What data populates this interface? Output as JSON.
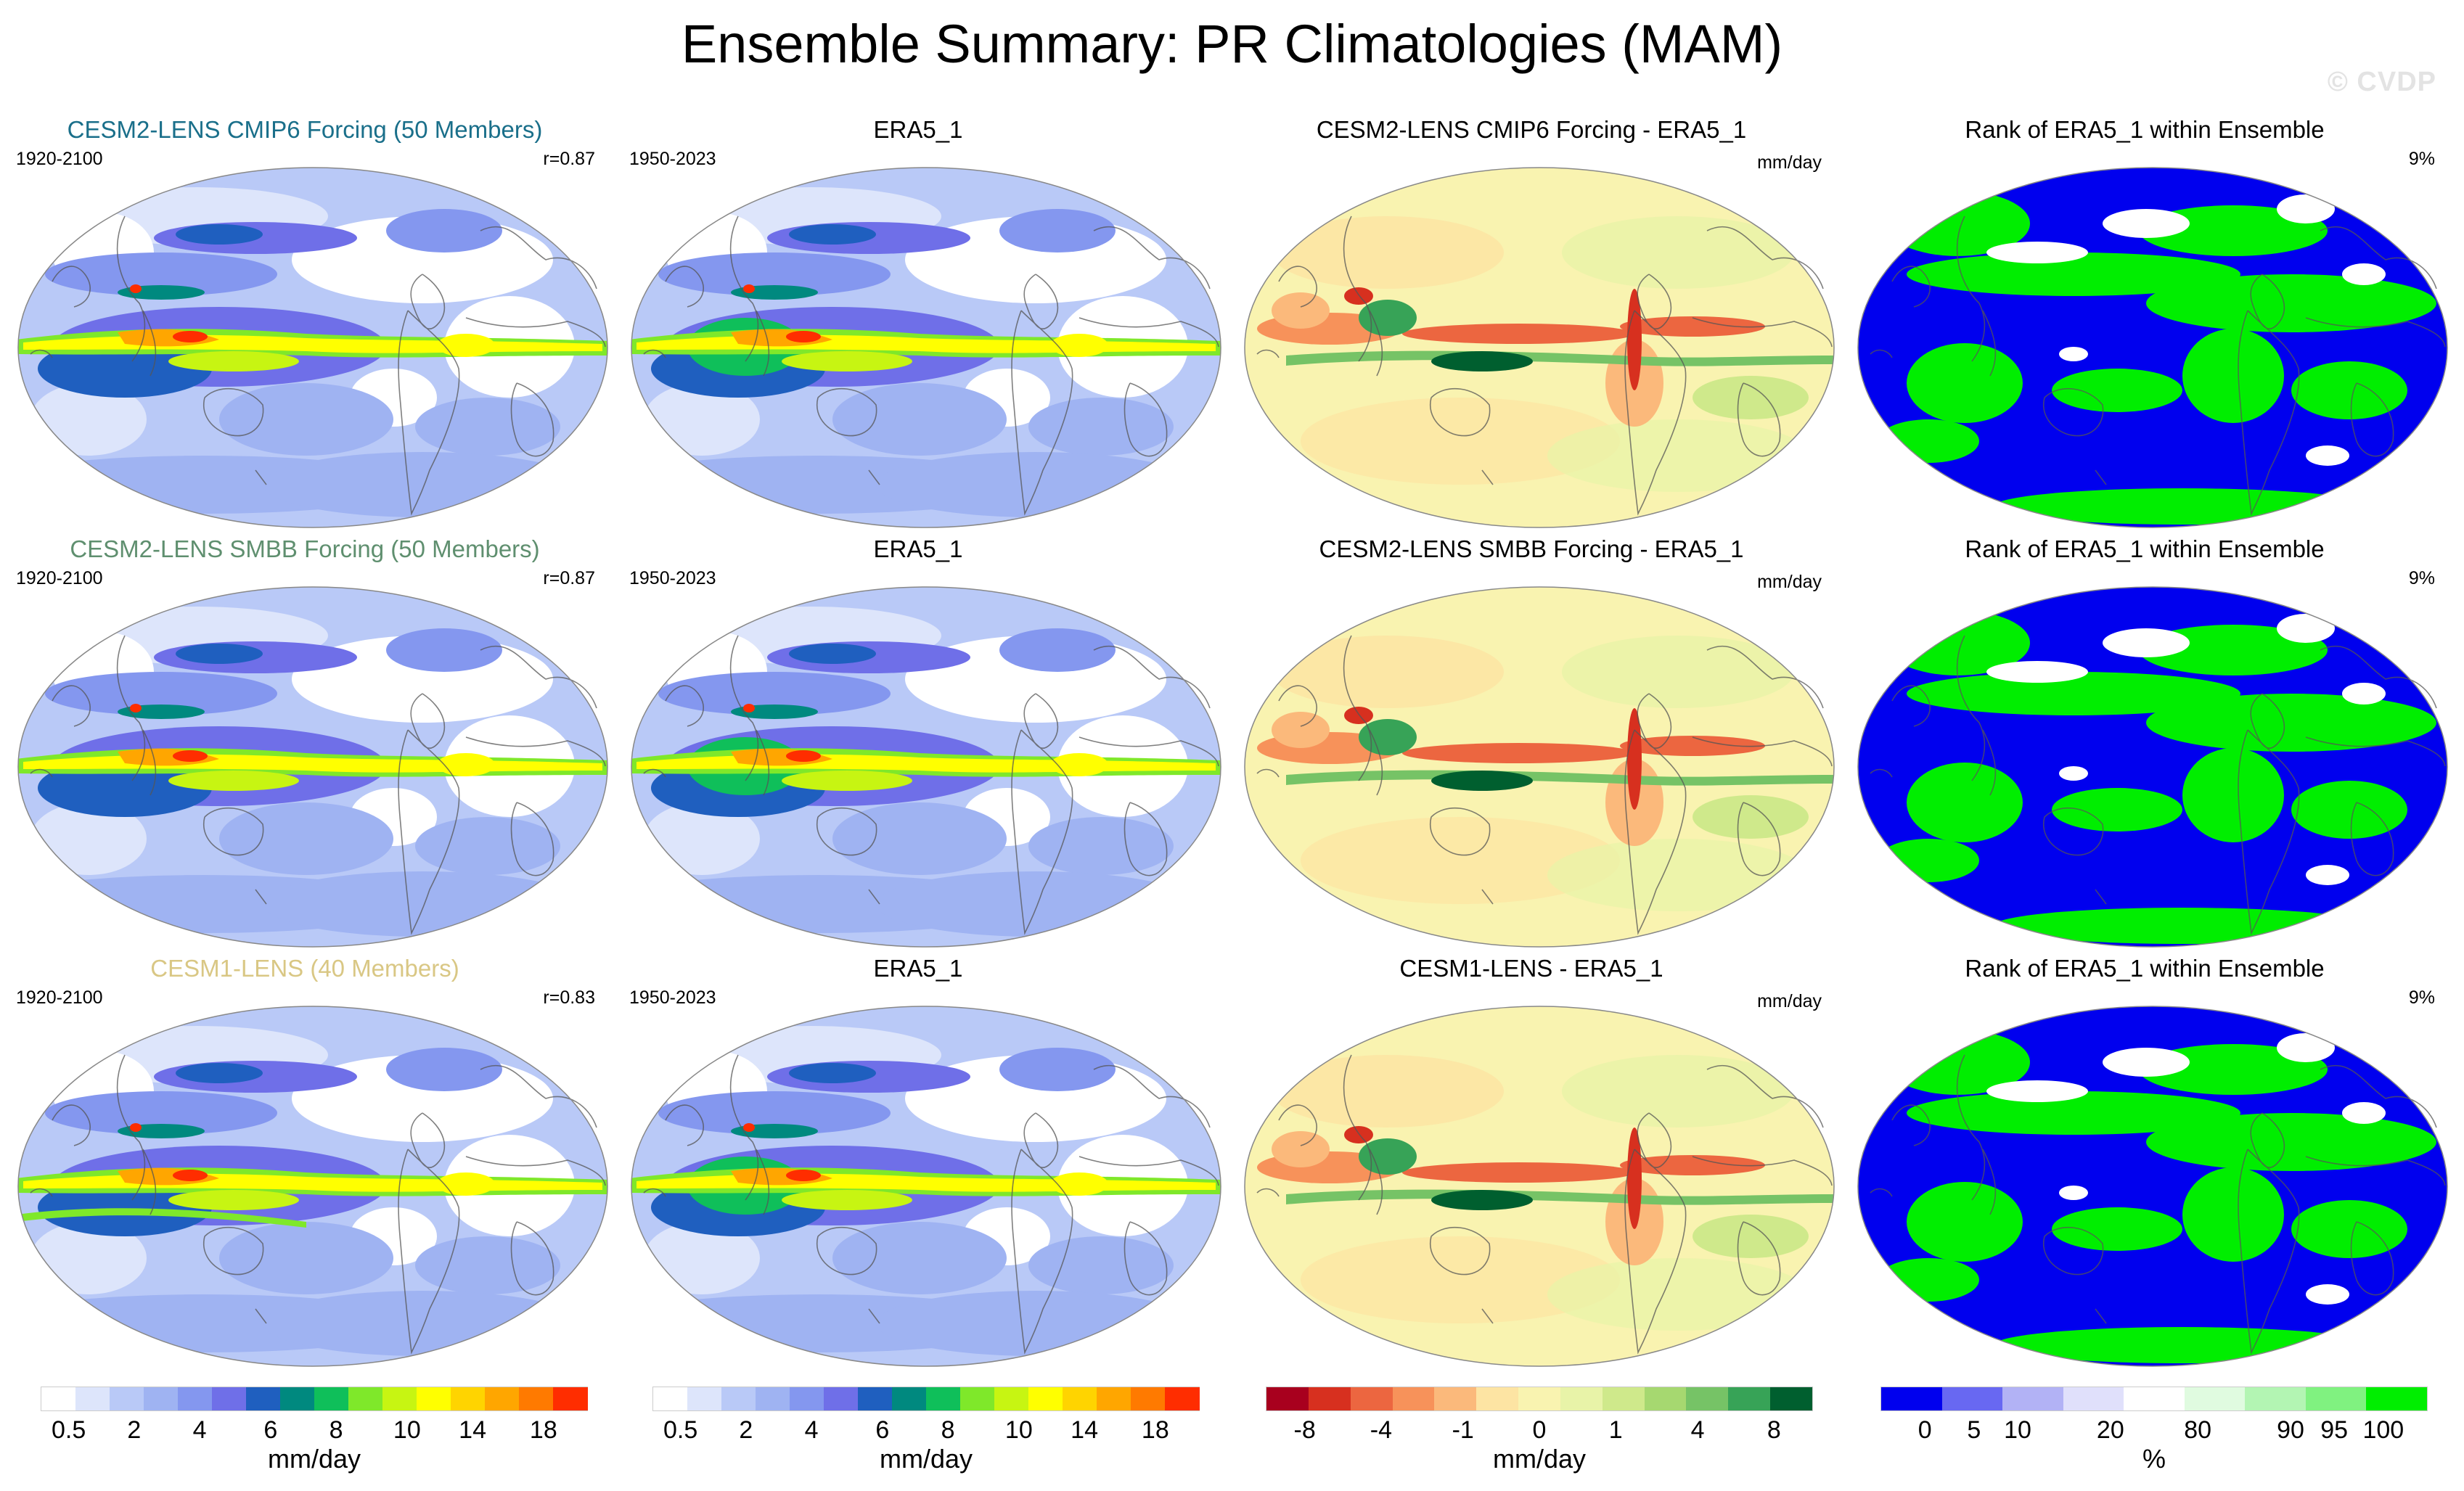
{
  "title": "Ensemble Summary: PR Climatologies (MAM)",
  "watermark": "© CVDP",
  "colors": {
    "precip_scale": [
      "#ffffff",
      "#dde5fb",
      "#b9c9f7",
      "#9fb3f2",
      "#8497ef",
      "#6f6fe8",
      "#1f5fbf",
      "#00897f",
      "#0fbf5a",
      "#7fe82a",
      "#c7f512",
      "#ffff00",
      "#ffd400",
      "#ffa600",
      "#ff7a00",
      "#ff2d00"
    ],
    "diff_scale": [
      "#a8001e",
      "#d7301f",
      "#ec6640",
      "#f7925a",
      "#fbb97b",
      "#fde4a3",
      "#f9f3b0",
      "#e8f3a8",
      "#cfe98b",
      "#a6d870",
      "#76c366",
      "#37a357",
      "#005f2f"
    ],
    "rank_scale": [
      "#0000ee",
      "#6868f2",
      "#b2b2f5",
      "#e0e0fb",
      "#ffffff",
      "#e0fbe0",
      "#b3f5b3",
      "#80f280",
      "#00ee00"
    ],
    "title_row1": "#1a6f8a",
    "title_row2": "#5f8f6f",
    "title_row3": "#d9c784"
  },
  "rows": [
    {
      "model_title": "CESM2-LENS CMIP6 Forcing (50 Members)",
      "model_years": "1920-2100",
      "pattern_corr": "r=0.87",
      "obs_title": "ERA5_1",
      "obs_years": "1950-2023",
      "diff_title": "CESM2-LENS CMIP6 Forcing - ERA5_1",
      "diff_units": "mm/day",
      "rank_title": "Rank of ERA5_1 within Ensemble",
      "rank_pct": "9%"
    },
    {
      "model_title": "CESM2-LENS SMBB Forcing (50 Members)",
      "model_years": "1920-2100",
      "pattern_corr": "r=0.87",
      "obs_title": "ERA5_1",
      "obs_years": "1950-2023",
      "diff_title": "CESM2-LENS SMBB Forcing - ERA5_1",
      "diff_units": "mm/day",
      "rank_title": "Rank of ERA5_1 within Ensemble",
      "rank_pct": "9%"
    },
    {
      "model_title": "CESM1-LENS (40 Members)",
      "model_years": "1920-2100",
      "pattern_corr": "r=0.83",
      "obs_title": "ERA5_1",
      "obs_years": "1950-2023",
      "diff_title": "CESM1-LENS - ERA5_1",
      "diff_units": "mm/day",
      "rank_title": "Rank of ERA5_1 within Ensemble",
      "rank_pct": "9%"
    }
  ],
  "colorbars": [
    {
      "labels": [
        "0.5",
        "2",
        "4",
        "6",
        "8",
        "10",
        "14",
        "18"
      ],
      "units": "mm/day"
    },
    {
      "labels": [
        "0.5",
        "2",
        "4",
        "6",
        "8",
        "10",
        "14",
        "18"
      ],
      "units": "mm/day"
    },
    {
      "labels": [
        "-8",
        "-4",
        "-1",
        "0",
        "1",
        "4",
        "8"
      ],
      "units": "mm/day"
    },
    {
      "labels": [
        "0",
        "5",
        "10",
        "20",
        "80",
        "90",
        "95",
        "100"
      ],
      "units": "%"
    }
  ],
  "chart_data": {
    "type": "heatmap",
    "title": "Ensemble Summary: PR Climatologies (MAM)",
    "variable": "PR",
    "season": "MAM",
    "units": "mm/day",
    "precip_levels": [
      0.5,
      1,
      2,
      3,
      4,
      5,
      6,
      7,
      8,
      9,
      10,
      12,
      14,
      16,
      18
    ],
    "diff_levels": [
      -8,
      -6,
      -4,
      -2,
      -1,
      -0.5,
      0,
      0.5,
      1,
      2,
      4,
      6,
      8
    ],
    "rank_levels": [
      0,
      5,
      10,
      20,
      80,
      90,
      95,
      100
    ],
    "panels": [
      {
        "row": 1,
        "col": 1,
        "type": "ensemble_mean",
        "name": "CESM2-LENS CMIP6 Forcing (50 Members)",
        "years": "1920-2100",
        "r": 0.87
      },
      {
        "row": 1,
        "col": 2,
        "type": "observations",
        "name": "ERA5_1",
        "years": "1950-2023"
      },
      {
        "row": 1,
        "col": 3,
        "type": "difference",
        "name": "CESM2-LENS CMIP6 Forcing - ERA5_1"
      },
      {
        "row": 1,
        "col": 4,
        "type": "rank",
        "name": "Rank of ERA5_1 within Ensemble",
        "pct": 9
      },
      {
        "row": 2,
        "col": 1,
        "type": "ensemble_mean",
        "name": "CESM2-LENS SMBB Forcing (50 Members)",
        "years": "1920-2100",
        "r": 0.87
      },
      {
        "row": 2,
        "col": 2,
        "type": "observations",
        "name": "ERA5_1",
        "years": "1950-2023"
      },
      {
        "row": 2,
        "col": 3,
        "type": "difference",
        "name": "CESM2-LENS SMBB Forcing - ERA5_1"
      },
      {
        "row": 2,
        "col": 4,
        "type": "rank",
        "name": "Rank of ERA5_1 within Ensemble",
        "pct": 9
      },
      {
        "row": 3,
        "col": 1,
        "type": "ensemble_mean",
        "name": "CESM1-LENS (40 Members)",
        "years": "1920-2100",
        "r": 0.83
      },
      {
        "row": 3,
        "col": 2,
        "type": "observations",
        "name": "ERA5_1",
        "years": "1950-2023"
      },
      {
        "row": 3,
        "col": 3,
        "type": "difference",
        "name": "CESM1-LENS - ERA5_1"
      },
      {
        "row": 3,
        "col": 4,
        "type": "rank",
        "name": "Rank of ERA5_1 within Ensemble",
        "pct": 9
      }
    ]
  }
}
